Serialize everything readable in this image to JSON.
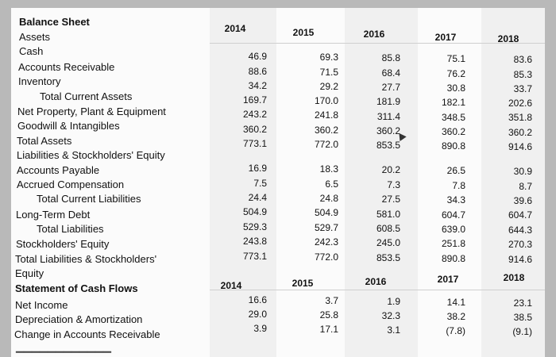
{
  "balance_sheet": {
    "title": "Balance Sheet",
    "years": [
      "2014",
      "2015",
      "2016",
      "2017",
      "2018"
    ],
    "labels": [
      "Assets",
      "Cash",
      "Accounts Receivable",
      "Inventory",
      "Total Current Assets",
      "Net Property, Plant & Equipment",
      "Goodwill & Intangibles",
      "Total Assets",
      "Liabilities & Stockholders' Equity",
      "Accounts Payable",
      "Accrued Compensation",
      "Total Current Liabilities",
      "Long-Term Debt",
      "Total Liabilities",
      "Stockholders' Equity",
      "Total Liabilities & Stockholders'",
      "Equity"
    ],
    "asset_rows": [
      [
        "46.9",
        "69.3",
        "85.8",
        "75.1",
        "83.6"
      ],
      [
        "88.6",
        "71.5",
        "68.4",
        "76.2",
        "85.3"
      ],
      [
        "34.2",
        "29.2",
        "27.7",
        "30.8",
        "33.7"
      ],
      [
        "169.7",
        "170.0",
        "181.9",
        "182.1",
        "202.6"
      ],
      [
        "243.2",
        "241.8",
        "311.4",
        "348.5",
        "351.8"
      ],
      [
        "360.2",
        "360.2",
        "360.2",
        "360.2",
        "360.2"
      ],
      [
        "773.1",
        "772.0",
        "853.5",
        "890.8",
        "914.6"
      ]
    ],
    "liability_rows": [
      [
        "16.9",
        "18.3",
        "20.2",
        "26.5",
        "30.9"
      ],
      [
        "7.5",
        "6.5",
        "7.3",
        "7.8",
        "8.7"
      ],
      [
        "24.4",
        "24.8",
        "27.5",
        "34.3",
        "39.6"
      ],
      [
        "504.9",
        "504.9",
        "581.0",
        "604.7",
        "604.7"
      ],
      [
        "529.3",
        "529.7",
        "608.5",
        "639.0",
        "644.3"
      ],
      [
        "243.8",
        "242.3",
        "245.0",
        "251.8",
        "270.3"
      ],
      [
        "773.1",
        "772.0",
        "853.5",
        "890.8",
        "914.6"
      ]
    ]
  },
  "cash_flows": {
    "title": "Statement of Cash Flows",
    "years": [
      "2014",
      "2015",
      "2016",
      "2017",
      "2018"
    ],
    "labels": [
      "Net Income",
      "Depreciation & Amortization",
      "Change in Accounts Receivable"
    ],
    "rows": [
      [
        "16.6",
        "3.7",
        "1.9",
        "14.1",
        "23.1"
      ],
      [
        "29.0",
        "25.8",
        "32.3",
        "38.2",
        "38.5"
      ],
      [
        "3.9",
        "17.1",
        "3.1",
        "(7.8)",
        "(9.1)"
      ]
    ]
  },
  "icons": {
    "cursor": "cursor-icon"
  }
}
